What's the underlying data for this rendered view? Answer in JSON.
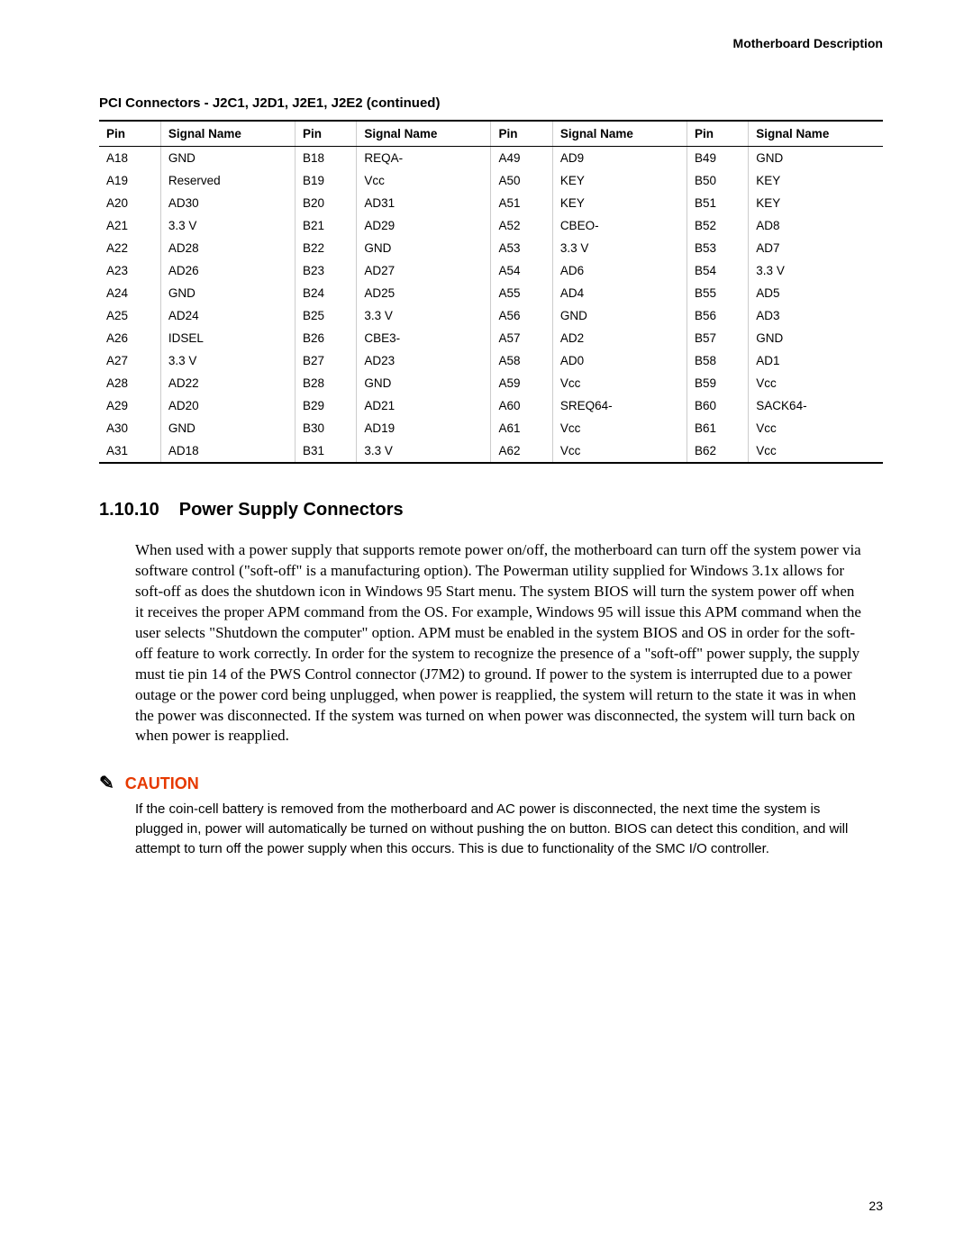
{
  "header": {
    "right": "Motherboard Description"
  },
  "table": {
    "title": "PCI Connectors - J2C1, J2D1, J2E1, J2E2 (continued)",
    "headers": [
      "Pin",
      "Signal Name",
      "Pin",
      "Signal Name",
      "Pin",
      "Signal Name",
      "Pin",
      "Signal Name"
    ],
    "rows": [
      [
        "A18",
        "GND",
        "B18",
        "REQA-",
        "A49",
        "AD9",
        "B49",
        "GND"
      ],
      [
        "A19",
        "Reserved",
        "B19",
        "Vcc",
        "A50",
        "KEY",
        "B50",
        "KEY"
      ],
      [
        "A20",
        "AD30",
        "B20",
        "AD31",
        "A51",
        "KEY",
        "B51",
        "KEY"
      ],
      [
        "A21",
        "3.3 V",
        "B21",
        "AD29",
        "A52",
        "CBEO-",
        "B52",
        "AD8"
      ],
      [
        "A22",
        "AD28",
        "B22",
        "GND",
        "A53",
        "3.3 V",
        "B53",
        "AD7"
      ],
      [
        "A23",
        "AD26",
        "B23",
        "AD27",
        "A54",
        "AD6",
        "B54",
        "3.3 V"
      ],
      [
        "A24",
        "GND",
        "B24",
        "AD25",
        "A55",
        "AD4",
        "B55",
        "AD5"
      ],
      [
        "A25",
        "AD24",
        "B25",
        "3.3 V",
        "A56",
        "GND",
        "B56",
        "AD3"
      ],
      [
        "A26",
        "IDSEL",
        "B26",
        "CBE3-",
        "A57",
        "AD2",
        "B57",
        "GND"
      ],
      [
        "A27",
        "3.3 V",
        "B27",
        "AD23",
        "A58",
        "AD0",
        "B58",
        "AD1"
      ],
      [
        "A28",
        "AD22",
        "B28",
        "GND",
        "A59",
        "Vcc",
        "B59",
        "Vcc"
      ],
      [
        "A29",
        "AD20",
        "B29",
        "AD21",
        "A60",
        "SREQ64-",
        "B60",
        "SACK64-"
      ],
      [
        "A30",
        "GND",
        "B30",
        "AD19",
        "A61",
        "Vcc",
        "B61",
        "Vcc"
      ],
      [
        "A31",
        "AD18",
        "B31",
        "3.3 V",
        "A62",
        "Vcc",
        "B62",
        "Vcc"
      ]
    ]
  },
  "section": {
    "number": "1.10.10",
    "title": "Power Supply Connectors",
    "body": "When used with a power supply that supports remote power on/off, the motherboard can turn off the system power via software control (\"soft-off\" is a manufacturing option).  The Powerman utility supplied for Windows 3.1x allows for soft-off as does the shutdown icon in Windows 95 Start menu.  The system BIOS will turn the system power off when it receives the proper APM command from the OS.  For example, Windows 95 will issue this APM command when the user selects \"Shutdown the computer\" option.  APM must be enabled in the system BIOS and OS in order for the soft-off feature to work correctly.  In order for the system to recognize the presence of a \"soft-off\" power supply, the supply must tie pin 14 of the PWS Control connector (J7M2) to ground.  If power to the system is interrupted due to a power outage or the power cord being unplugged, when power is reapplied, the system will return to the state it was in when the power was disconnected.  If the system was turned on when power was disconnected, the system will turn back on when power is reapplied."
  },
  "caution": {
    "label": "CAUTION",
    "text": "If the coin-cell battery is removed from the motherboard and AC power is disconnected, the next time the system is plugged in, power will automatically be turned on without pushing the  on button.  BIOS can detect this condition, and will attempt to turn off the power supply when this occurs.  This is due to functionality of the SMC I/O controller."
  },
  "page_number": "23",
  "colors": {
    "caution": "#e63900",
    "text": "#000000",
    "rule_light": "#cccccc"
  }
}
